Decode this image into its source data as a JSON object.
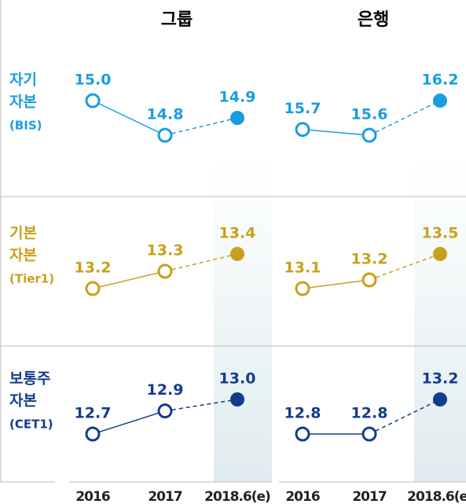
{
  "columns": [
    "그룹",
    "은행"
  ],
  "row_labels": [
    [
      "자기",
      "자본",
      "(BIS)"
    ],
    [
      "기본",
      "자본",
      "(Tier1)"
    ],
    [
      "보통주",
      "자본",
      "(CET1)"
    ]
  ],
  "categories": [
    "2016",
    "2017",
    "2018.6(e)"
  ],
  "chart_data": [
    {
      "type": "line",
      "color": "#1a9de0",
      "values": [
        15.0,
        14.8,
        14.9
      ],
      "value_labels": [
        "15.0",
        "14.8",
        "14.9"
      ]
    },
    {
      "type": "line",
      "color": "#1a9de0",
      "values": [
        15.7,
        15.6,
        16.2
      ],
      "value_labels": [
        "15.7",
        "15.6",
        "16.2"
      ]
    },
    {
      "type": "line",
      "color": "#c9a01c",
      "values": [
        13.2,
        13.3,
        13.4
      ],
      "value_labels": [
        "13.2",
        "13.3",
        "13.4"
      ]
    },
    {
      "type": "line",
      "color": "#c9a01c",
      "values": [
        13.1,
        13.2,
        13.5
      ],
      "value_labels": [
        "13.1",
        "13.2",
        "13.5"
      ]
    },
    {
      "type": "line",
      "color": "#143c8c",
      "values": [
        12.7,
        12.9,
        13.0
      ],
      "value_labels": [
        "12.7",
        "12.9",
        "13.0"
      ]
    },
    {
      "type": "line",
      "color": "#143c8c",
      "values": [
        12.8,
        12.8,
        13.2
      ],
      "value_labels": [
        "12.8",
        "12.8",
        "13.2"
      ]
    }
  ]
}
